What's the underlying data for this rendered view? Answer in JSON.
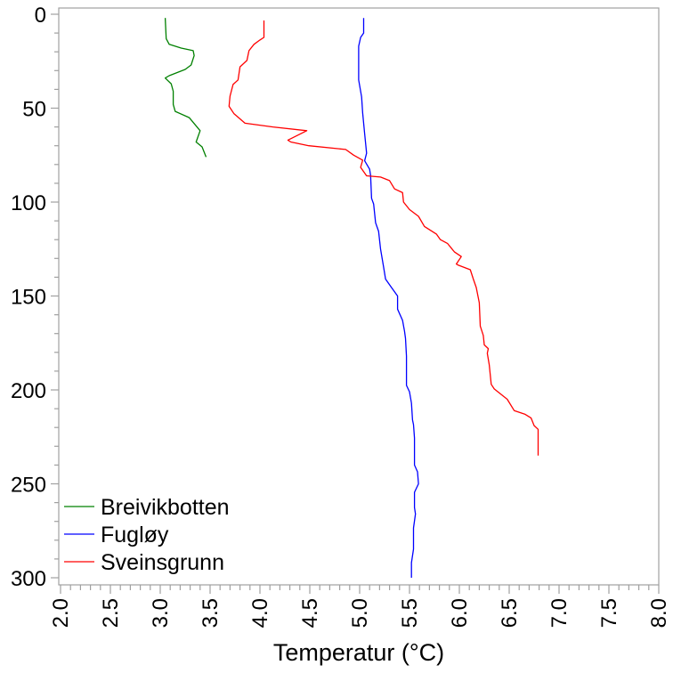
{
  "chart_data": {
    "type": "line",
    "title": "",
    "xlabel": "Temperatur (°C)",
    "ylabel": "",
    "xlim": [
      2.0,
      8.0
    ],
    "ylim": [
      300,
      0
    ],
    "y_reversed": true,
    "grid": false,
    "legend_position": "bottom-left",
    "x_ticks": [
      "2.0",
      "2.5",
      "3.0",
      "3.5",
      "4.0",
      "4.5",
      "5.0",
      "5.5",
      "6.0",
      "6.5",
      "7.0",
      "7.5",
      "8.0"
    ],
    "y_ticks": [
      "0",
      "50",
      "100",
      "150",
      "200",
      "250",
      "300"
    ],
    "series": [
      {
        "name": "Breivikbotten",
        "color": "#008000",
        "points": [
          [
            3.05,
            2
          ],
          [
            3.06,
            13
          ],
          [
            3.09,
            16
          ],
          [
            3.21,
            18
          ],
          [
            3.33,
            19.4
          ],
          [
            3.34,
            22
          ],
          [
            3.31,
            27
          ],
          [
            3.25,
            29.4
          ],
          [
            3.09,
            32.7
          ],
          [
            3.05,
            34
          ],
          [
            3.11,
            37
          ],
          [
            3.13,
            41
          ],
          [
            3.13,
            44.5
          ],
          [
            3.13,
            48
          ],
          [
            3.15,
            51.7
          ],
          [
            3.29,
            55
          ],
          [
            3.4,
            62
          ],
          [
            3.36,
            68
          ],
          [
            3.42,
            70.6
          ],
          [
            3.46,
            76
          ]
        ]
      },
      {
        "name": "Fugløy",
        "color": "#0000ff",
        "points": [
          [
            5.04,
            2
          ],
          [
            5.04,
            10
          ],
          [
            5.01,
            12.3
          ],
          [
            4.99,
            17
          ],
          [
            4.99,
            35
          ],
          [
            5.02,
            44
          ],
          [
            5.03,
            52.6
          ],
          [
            5.05,
            63.5
          ],
          [
            5.07,
            74
          ],
          [
            5.05,
            78
          ],
          [
            5.1,
            82.5
          ],
          [
            5.11,
            85.8
          ],
          [
            5.12,
            98
          ],
          [
            5.14,
            101
          ],
          [
            5.16,
            111
          ],
          [
            5.19,
            115.6
          ],
          [
            5.21,
            125
          ],
          [
            5.24,
            134.6
          ],
          [
            5.26,
            141
          ],
          [
            5.32,
            145.5
          ],
          [
            5.38,
            150
          ],
          [
            5.38,
            157
          ],
          [
            5.43,
            163
          ],
          [
            5.45,
            168.7
          ],
          [
            5.46,
            172.5
          ],
          [
            5.47,
            182
          ],
          [
            5.47,
            197.6
          ],
          [
            5.5,
            201
          ],
          [
            5.52,
            207
          ],
          [
            5.53,
            216
          ],
          [
            5.54,
            218.5
          ],
          [
            5.55,
            225.6
          ],
          [
            5.55,
            240
          ],
          [
            5.58,
            243.6
          ],
          [
            5.59,
            250
          ],
          [
            5.55,
            254.5
          ],
          [
            5.55,
            262.6
          ],
          [
            5.56,
            266
          ],
          [
            5.54,
            273.5
          ],
          [
            5.54,
            284.8
          ],
          [
            5.52,
            292
          ],
          [
            5.52,
            294
          ],
          [
            5.52,
            300
          ]
        ]
      },
      {
        "name": "Sveinsgrunn",
        "color": "#ff0000",
        "points": [
          [
            4.04,
            3.3
          ],
          [
            4.04,
            12.3
          ],
          [
            4.0,
            13.7
          ],
          [
            3.94,
            16
          ],
          [
            3.89,
            19.4
          ],
          [
            3.87,
            24.6
          ],
          [
            3.8,
            28
          ],
          [
            3.78,
            35
          ],
          [
            3.73,
            37.4
          ],
          [
            3.7,
            43.6
          ],
          [
            3.69,
            49
          ],
          [
            3.74,
            53
          ],
          [
            3.85,
            58
          ],
          [
            4.13,
            60
          ],
          [
            4.47,
            62
          ],
          [
            4.28,
            67
          ],
          [
            4.31,
            68
          ],
          [
            4.49,
            70
          ],
          [
            4.86,
            72
          ],
          [
            4.94,
            75
          ],
          [
            5.03,
            77.7
          ],
          [
            5.01,
            81.5
          ],
          [
            5.07,
            86
          ],
          [
            5.21,
            86.7
          ],
          [
            5.3,
            88.6
          ],
          [
            5.35,
            93
          ],
          [
            5.43,
            95
          ],
          [
            5.44,
            100
          ],
          [
            5.5,
            104
          ],
          [
            5.59,
            107.6
          ],
          [
            5.65,
            113
          ],
          [
            5.77,
            117
          ],
          [
            5.81,
            120
          ],
          [
            5.88,
            122
          ],
          [
            5.95,
            126.5
          ],
          [
            6.02,
            129
          ],
          [
            5.97,
            133
          ],
          [
            5.99,
            133.6
          ],
          [
            6.11,
            136
          ],
          [
            6.14,
            141
          ],
          [
            6.17,
            145.5
          ],
          [
            6.2,
            153.6
          ],
          [
            6.21,
            166
          ],
          [
            6.24,
            171
          ],
          [
            6.25,
            176
          ],
          [
            6.29,
            178
          ],
          [
            6.28,
            180.5
          ],
          [
            6.3,
            186.7
          ],
          [
            6.32,
            197
          ],
          [
            6.35,
            199.5
          ],
          [
            6.48,
            205
          ],
          [
            6.55,
            211
          ],
          [
            6.66,
            213
          ],
          [
            6.72,
            215
          ],
          [
            6.75,
            219
          ],
          [
            6.79,
            221
          ],
          [
            6.79,
            235
          ]
        ]
      }
    ]
  }
}
